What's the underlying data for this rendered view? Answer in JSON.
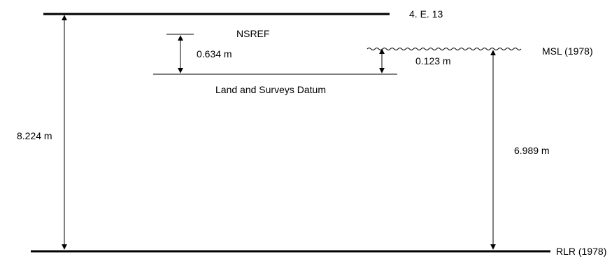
{
  "labels": {
    "bench_mark": "4. E. 13",
    "nsref": "NSREF",
    "msl": "MSL (1978)",
    "land_surveys": "Land and Surveys Datum",
    "rlr": "RLR (1978)"
  },
  "dimensions": {
    "bm_to_rlr": "8.224 m",
    "nsref_to_land": "0.634 m",
    "msl_to_land": "0.123 m",
    "msl_to_rlr": "6.989 m"
  },
  "colors": {
    "line": "#000000",
    "background": "#ffffff"
  }
}
